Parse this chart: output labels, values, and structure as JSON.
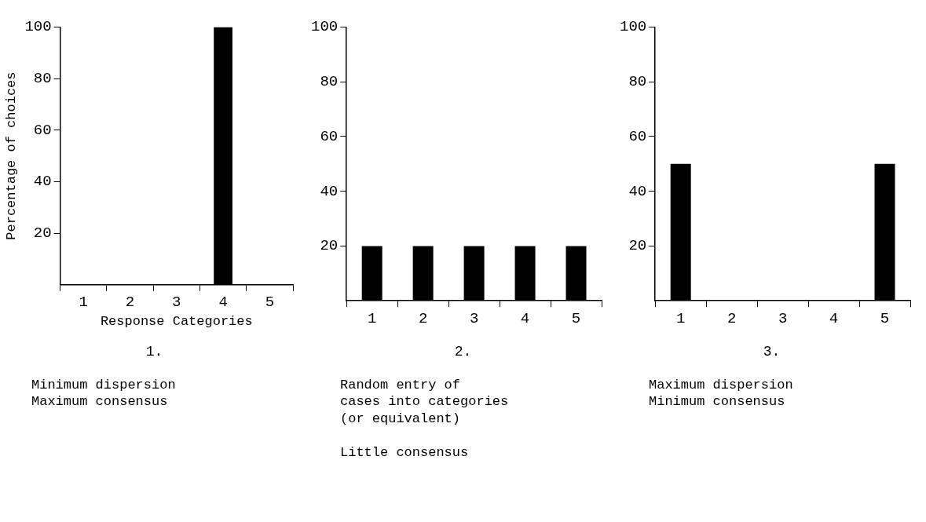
{
  "chart_data": [
    {
      "type": "bar",
      "title": "1.",
      "xlabel": "Response Categories",
      "ylabel": "Percentage of choices",
      "categories": [
        "1",
        "2",
        "3",
        "4",
        "5"
      ],
      "values": [
        0,
        0,
        0,
        100,
        0
      ],
      "color": "#000000",
      "ylim": [
        0,
        100
      ],
      "yticks": [
        20,
        40,
        60,
        80,
        100
      ],
      "grid": false,
      "legend": false,
      "annotations": [
        "Minimum dispersion\nMaximum consensus"
      ]
    },
    {
      "type": "bar",
      "title": "2.",
      "categories": [
        "1",
        "2",
        "3",
        "4",
        "5"
      ],
      "values": [
        20,
        20,
        20,
        20,
        20
      ],
      "color": "#000000",
      "ylim": [
        0,
        100
      ],
      "yticks": [
        20,
        40,
        60,
        80,
        100
      ],
      "grid": false,
      "legend": false,
      "annotations": [
        "Random entry of\ncases into categories\n(or equivalent)",
        "Little consensus"
      ]
    },
    {
      "type": "bar",
      "title": "3.",
      "categories": [
        "1",
        "2",
        "3",
        "4",
        "5"
      ],
      "values": [
        50,
        0,
        0,
        0,
        50
      ],
      "color": "#000000",
      "ylim": [
        0,
        100
      ],
      "yticks": [
        20,
        40,
        60,
        80,
        100
      ],
      "grid": false,
      "legend": false,
      "annotations": [
        "Maximum dispersion\nMinimum consensus"
      ]
    }
  ]
}
